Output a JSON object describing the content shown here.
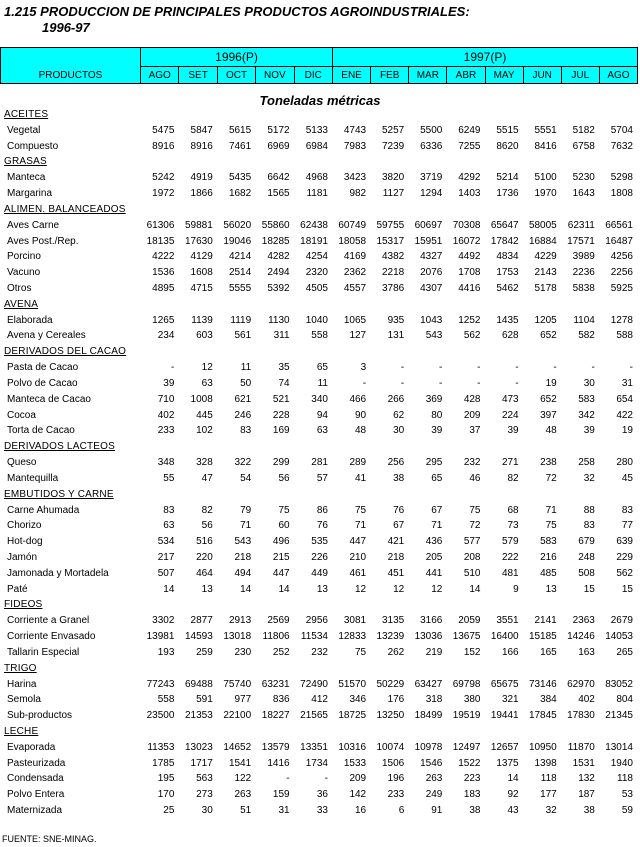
{
  "title": [
    "1.215 PRODUCCION DE PRINCIPALES PRODUCTOS AGROINDUSTRIALES:",
    "1996-97"
  ],
  "header": {
    "products": "PRODUCTOS",
    "groups": [
      {
        "label": "1996(P)",
        "months": [
          "AGO",
          "SET",
          "OCT",
          "NOV",
          "DIC"
        ]
      },
      {
        "label": "1997(P)",
        "months": [
          "ENE",
          "FEB",
          "MAR",
          "ABR",
          "MAY",
          "JUN",
          "JUL",
          "AGO"
        ]
      }
    ]
  },
  "unit": "Toneladas métricas",
  "sections": [
    {
      "name": "ACEITES",
      "rows": [
        {
          "label": "Vegetal",
          "values": [
            5475,
            5847,
            5615,
            5172,
            5133,
            4743,
            5257,
            5500,
            6249,
            5515,
            5551,
            5182,
            5704
          ]
        },
        {
          "label": "Compuesto",
          "values": [
            8916,
            8916,
            7461,
            6969,
            6984,
            7983,
            7239,
            6336,
            7255,
            8620,
            8416,
            6758,
            7632
          ]
        }
      ]
    },
    {
      "name": "GRASAS",
      "rows": [
        {
          "label": "Manteca",
          "values": [
            5242,
            4919,
            5435,
            6642,
            4968,
            3423,
            3820,
            3719,
            4292,
            5214,
            5100,
            5230,
            5298
          ]
        },
        {
          "label": "Margarina",
          "values": [
            1972,
            1866,
            1682,
            1565,
            1181,
            982,
            1127,
            1294,
            1403,
            1736,
            1970,
            1643,
            1808
          ]
        }
      ]
    },
    {
      "name": "ALIMEN. BALANCEADOS",
      "rows": [
        {
          "label": "Aves Carne",
          "values": [
            61306,
            59881,
            56020,
            55860,
            62438,
            60749,
            59755,
            60697,
            70308,
            65647,
            58005,
            62311,
            66561
          ]
        },
        {
          "label": "Aves Post./Rep.",
          "values": [
            18135,
            17630,
            19046,
            18285,
            18191,
            18058,
            15317,
            15951,
            16072,
            17842,
            16884,
            17571,
            16487
          ]
        },
        {
          "label": "Porcino",
          "values": [
            4222,
            4129,
            4214,
            4282,
            4254,
            4169,
            4382,
            4327,
            4492,
            4834,
            4229,
            3989,
            4256
          ]
        },
        {
          "label": "Vacuno",
          "values": [
            1536,
            1608,
            2514,
            2494,
            2320,
            2362,
            2218,
            2076,
            1708,
            1753,
            2143,
            2236,
            2256
          ]
        },
        {
          "label": "Otros",
          "values": [
            4895,
            4715,
            5555,
            5392,
            4505,
            4557,
            3786,
            4307,
            4416,
            5462,
            5178,
            5838,
            5925
          ]
        }
      ]
    },
    {
      "name": "AVENA",
      "rows": [
        {
          "label": "Elaborada",
          "values": [
            1265,
            1139,
            1119,
            1130,
            1040,
            1065,
            935,
            1043,
            1252,
            1435,
            1205,
            1104,
            1278
          ]
        },
        {
          "label": "Avena y Cereales",
          "values": [
            234,
            603,
            561,
            311,
            558,
            127,
            131,
            543,
            562,
            628,
            652,
            582,
            588
          ]
        }
      ]
    },
    {
      "name": "DERIVADOS DEL CACAO",
      "rows": [
        {
          "label": "Pasta de Cacao",
          "values": [
            "-",
            12,
            11,
            35,
            65,
            3,
            "-",
            "-",
            "-",
            "-",
            "-",
            "-",
            "-"
          ]
        },
        {
          "label": "Polvo de Cacao",
          "values": [
            39,
            63,
            50,
            74,
            11,
            "-",
            "-",
            "-",
            "-",
            "-",
            19,
            30,
            31
          ]
        },
        {
          "label": "Manteca de Cacao",
          "values": [
            710,
            1008,
            621,
            521,
            340,
            466,
            266,
            369,
            428,
            473,
            652,
            583,
            654
          ]
        },
        {
          "label": "Cocoa",
          "values": [
            402,
            445,
            246,
            228,
            94,
            90,
            62,
            80,
            209,
            224,
            397,
            342,
            422
          ]
        },
        {
          "label": "Torta de Cacao",
          "values": [
            233,
            102,
            83,
            169,
            63,
            48,
            30,
            39,
            37,
            39,
            48,
            39,
            19
          ]
        }
      ]
    },
    {
      "name": "DERIVADOS LACTEOS",
      "rows": [
        {
          "label": "Queso",
          "values": [
            348,
            328,
            322,
            299,
            281,
            289,
            256,
            295,
            232,
            271,
            238,
            258,
            280
          ]
        },
        {
          "label": "Mantequilla",
          "values": [
            55,
            47,
            54,
            56,
            57,
            41,
            38,
            65,
            46,
            82,
            72,
            32,
            45
          ]
        }
      ]
    },
    {
      "name": "EMBUTIDOS Y CARNE",
      "rows": [
        {
          "label": "Carne Ahumada",
          "values": [
            83,
            82,
            79,
            75,
            86,
            75,
            76,
            67,
            75,
            68,
            71,
            88,
            83
          ]
        },
        {
          "label": "Chorizo",
          "values": [
            63,
            56,
            71,
            60,
            76,
            71,
            67,
            71,
            72,
            73,
            75,
            83,
            77
          ]
        },
        {
          "label": "Hot-dog",
          "values": [
            534,
            516,
            543,
            496,
            535,
            447,
            421,
            436,
            577,
            579,
            583,
            679,
            639
          ]
        },
        {
          "label": "Jamón",
          "values": [
            217,
            220,
            218,
            215,
            226,
            210,
            218,
            205,
            208,
            222,
            216,
            248,
            229
          ]
        },
        {
          "label": "Jamonada y Mortadela",
          "values": [
            507,
            464,
            494,
            447,
            449,
            461,
            451,
            441,
            510,
            481,
            485,
            508,
            562
          ]
        },
        {
          "label": "Paté",
          "values": [
            14,
            13,
            14,
            14,
            13,
            12,
            12,
            12,
            14,
            9,
            13,
            15,
            15
          ]
        }
      ]
    },
    {
      "name": "FIDEOS",
      "rows": [
        {
          "label": "Corriente a Granel",
          "values": [
            3302,
            2877,
            2913,
            2569,
            2956,
            3081,
            3135,
            3166,
            2059,
            3551,
            2141,
            2363,
            2679
          ]
        },
        {
          "label": "Corriente Envasado",
          "values": [
            13981,
            14593,
            13018,
            11806,
            11534,
            12833,
            13239,
            13036,
            13675,
            16400,
            15185,
            14246,
            14053
          ]
        },
        {
          "label": "Tallarin Especial",
          "values": [
            193,
            259,
            230,
            252,
            232,
            75,
            262,
            219,
            152,
            166,
            165,
            163,
            265
          ]
        }
      ]
    },
    {
      "name": "TRIGO",
      "rows": [
        {
          "label": "Harina",
          "values": [
            77243,
            69488,
            75740,
            63231,
            72490,
            51570,
            50229,
            63427,
            69798,
            65675,
            73146,
            62970,
            83052
          ]
        },
        {
          "label": "Semola",
          "values": [
            558,
            591,
            977,
            836,
            412,
            346,
            176,
            318,
            380,
            321,
            384,
            402,
            804
          ]
        },
        {
          "label": "Sub-productos",
          "values": [
            23500,
            21353,
            22100,
            18227,
            21565,
            18725,
            13250,
            18499,
            19519,
            19441,
            17845,
            17830,
            21345
          ]
        }
      ]
    },
    {
      "name": "LECHE",
      "rows": [
        {
          "label": "Evaporada",
          "values": [
            11353,
            13023,
            14652,
            13579,
            13351,
            10316,
            10074,
            10978,
            12497,
            12657,
            10950,
            11870,
            13014
          ]
        },
        {
          "label": "Pasteurizada",
          "values": [
            1785,
            1717,
            1541,
            1416,
            1734,
            1533,
            1506,
            1546,
            1522,
            1375,
            1398,
            1531,
            1940
          ]
        },
        {
          "label": "Condensada",
          "values": [
            195,
            563,
            122,
            "-",
            "-",
            209,
            196,
            263,
            223,
            14,
            118,
            132,
            118
          ]
        },
        {
          "label": "Polvo Entera",
          "values": [
            170,
            273,
            263,
            159,
            36,
            142,
            233,
            249,
            183,
            92,
            177,
            187,
            53
          ]
        },
        {
          "label": "Maternizada",
          "values": [
            25,
            30,
            51,
            31,
            33,
            16,
            6,
            91,
            38,
            43,
            32,
            38,
            59
          ]
        }
      ]
    }
  ],
  "source": "FUENTE: SNE-MINAG."
}
